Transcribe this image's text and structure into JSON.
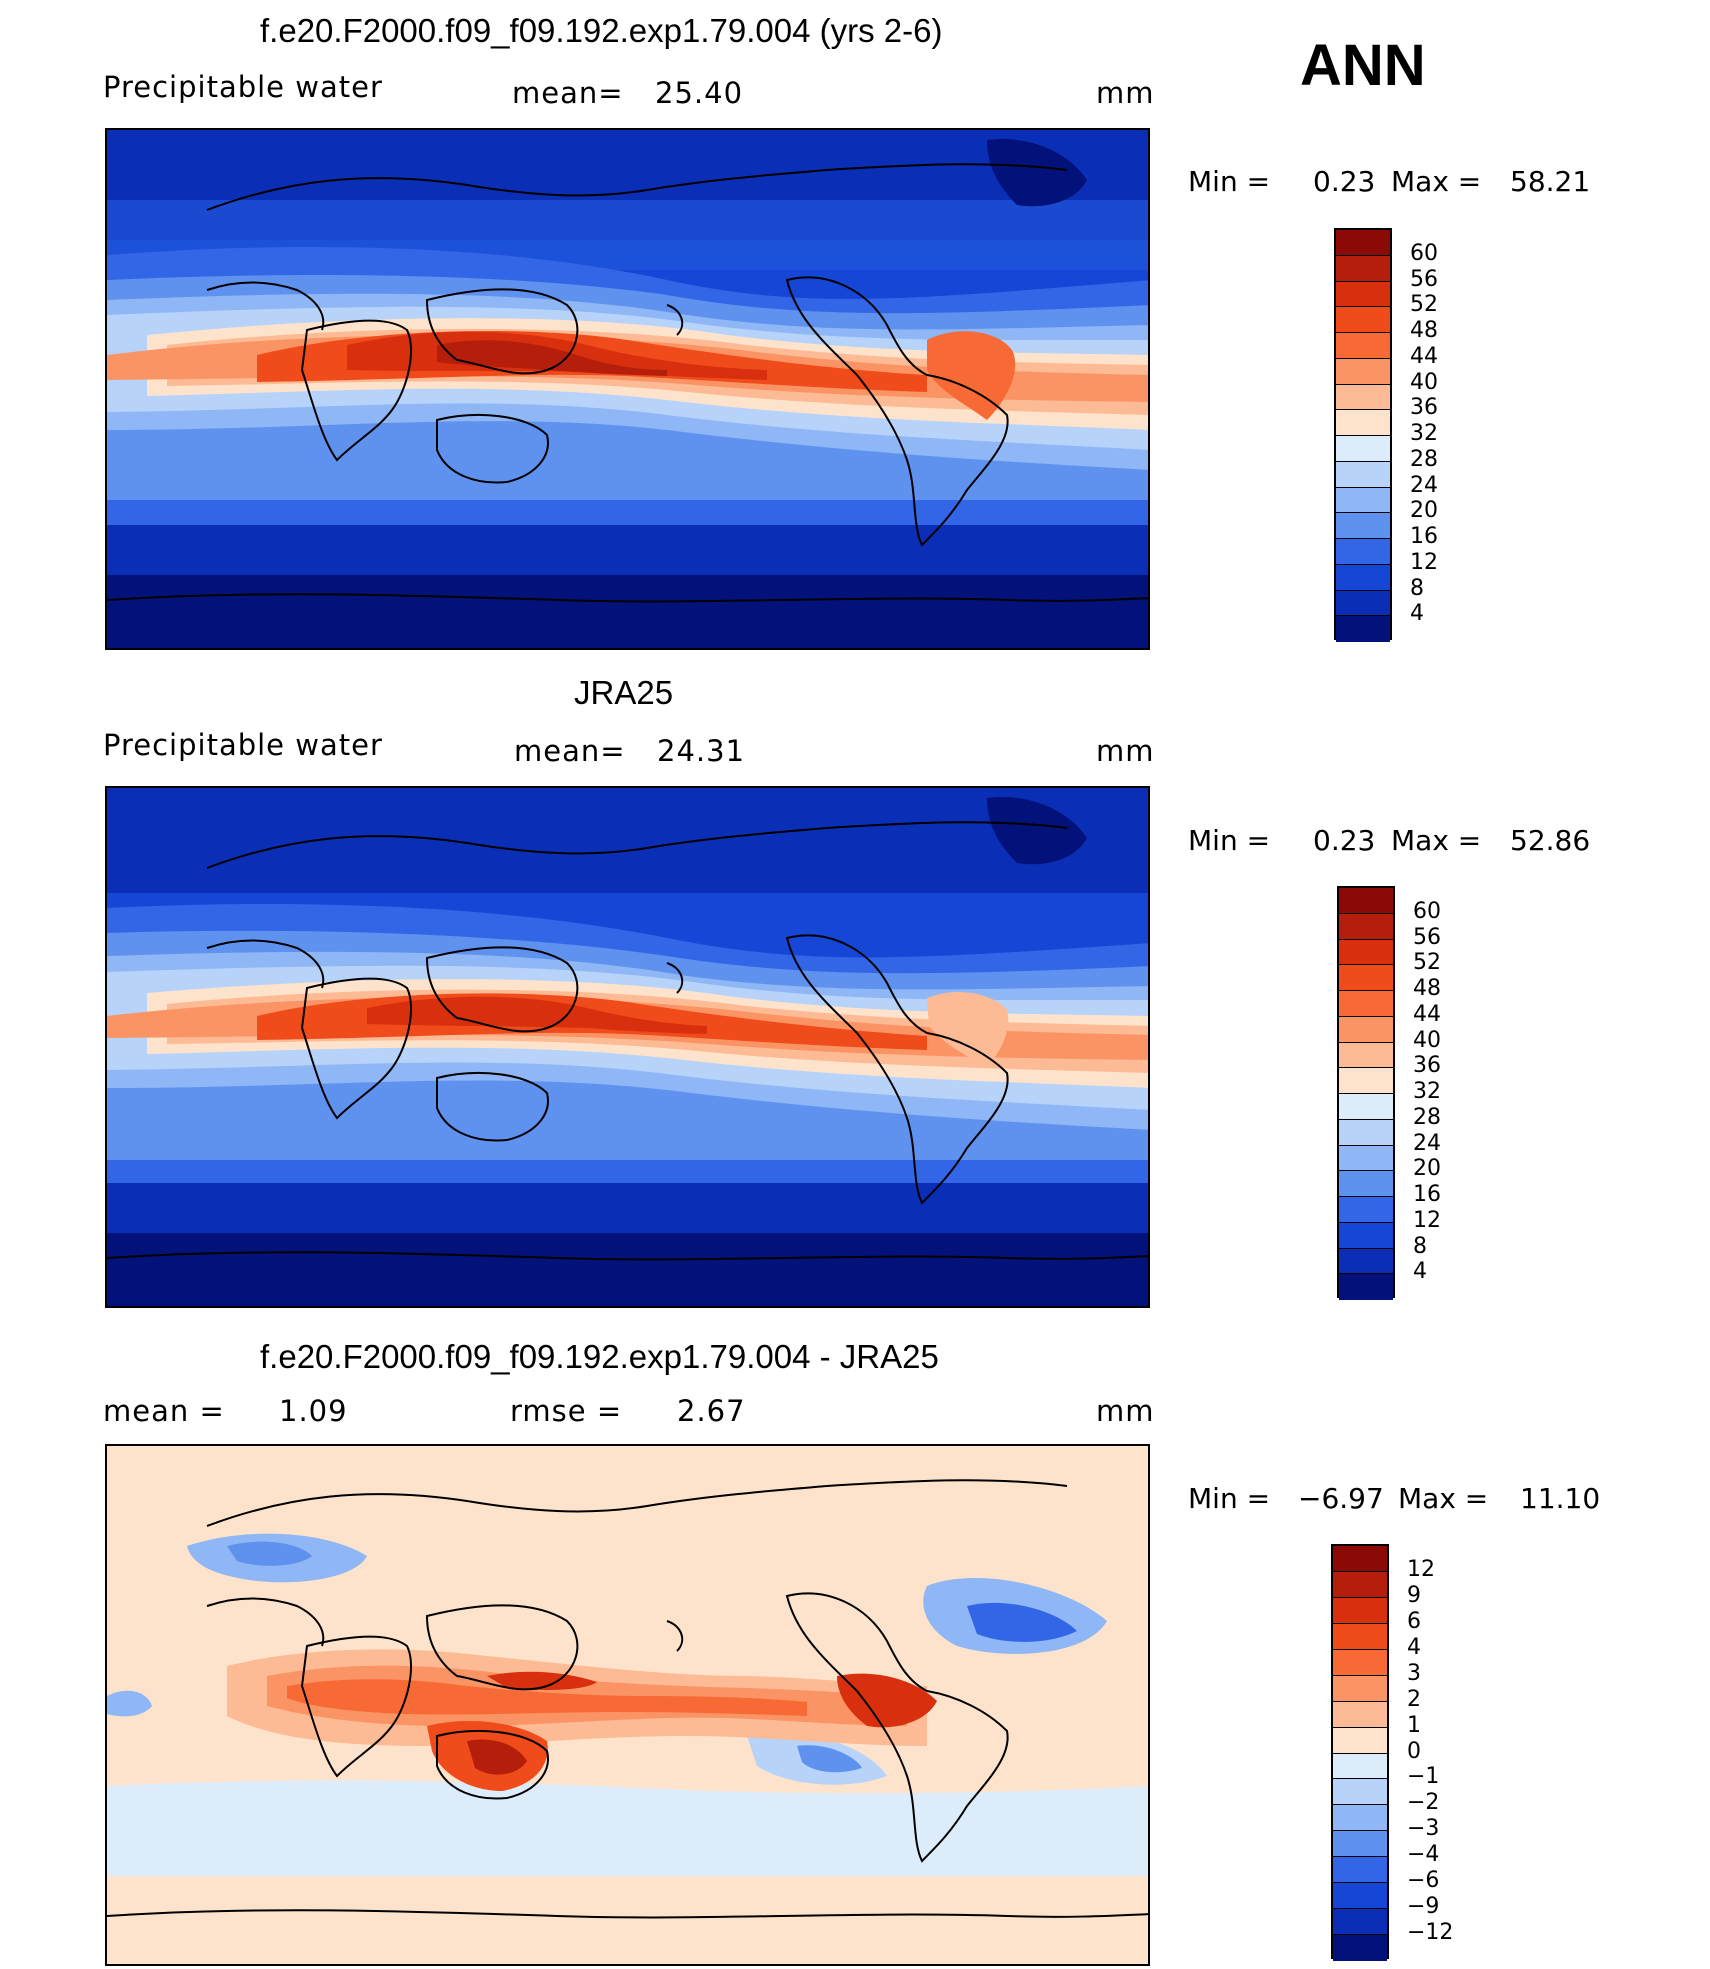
{
  "season": "ANN",
  "panels": [
    {
      "title": "f.e20.F2000.f09_f09.192.exp1.79.004 (yrs 2-6)",
      "left_label": "Precipitable  water",
      "center_label": "mean=",
      "center_value": "25.40",
      "unit": "mm",
      "min_label": "Min  =",
      "min_value": "0.23",
      "max_label": "Max  =",
      "max_value": "58.21",
      "colorbar": {
        "labels": [
          "60",
          "56",
          "52",
          "48",
          "44",
          "40",
          "36",
          "32",
          "28",
          "24",
          "20",
          "16",
          "12",
          "8",
          "4"
        ],
        "colors": [
          "#8b0a06",
          "#b51e0a",
          "#d8300e",
          "#f04b1a",
          "#f76a35",
          "#fb9464",
          "#fdbb95",
          "#fde3cc",
          "#dcecfb",
          "#b7d3fa",
          "#8fb6f5",
          "#5f91ee",
          "#3366e6",
          "#1546d6",
          "#0a2fb6",
          "#03127a"
        ]
      }
    },
    {
      "title": "JRA25",
      "left_label": "Precipitable  water",
      "center_label": "mean=",
      "center_value": "24.31",
      "unit": "mm",
      "min_label": "Min  =",
      "min_value": "0.23",
      "max_label": "Max  =",
      "max_value": "52.86",
      "colorbar": {
        "labels": [
          "60",
          "56",
          "52",
          "48",
          "44",
          "40",
          "36",
          "32",
          "28",
          "24",
          "20",
          "16",
          "12",
          "8",
          "4"
        ],
        "colors": [
          "#8b0a06",
          "#b51e0a",
          "#d8300e",
          "#f04b1a",
          "#f76a35",
          "#fb9464",
          "#fdbb95",
          "#fde3cc",
          "#dcecfb",
          "#b7d3fa",
          "#8fb6f5",
          "#5f91ee",
          "#3366e6",
          "#1546d6",
          "#0a2fb6",
          "#03127a"
        ]
      }
    },
    {
      "title": "f.e20.F2000.f09_f09.192.exp1.79.004 - JRA25",
      "left_label": "mean  =",
      "left_value": "1.09",
      "center_label": "rmse  =",
      "center_value": "2.67",
      "unit": "mm",
      "min_label": "Min  =",
      "min_value": "−6.97",
      "max_label": "Max  =",
      "max_value": "11.10",
      "colorbar": {
        "labels": [
          "12",
          "9",
          "6",
          "4",
          "3",
          "2",
          "1",
          "0",
          "−1",
          "−2",
          "−3",
          "−4",
          "−6",
          "−9",
          "−12"
        ],
        "colors": [
          "#8b0a06",
          "#b51e0a",
          "#d8300e",
          "#f04b1a",
          "#f76a35",
          "#fb9464",
          "#fdbb95",
          "#fde3cc",
          "#dcecfb",
          "#b7d3fa",
          "#8fb6f5",
          "#5f91ee",
          "#3366e6",
          "#1546d6",
          "#0a2fb6",
          "#03127a"
        ]
      }
    }
  ],
  "colors": {
    "deep_blue": "#03127a",
    "mid_blue": "#1546d6",
    "light_blue": "#8fb6f5",
    "pale": "#fde3cc",
    "orange": "#f04b1a",
    "dark_red": "#b51e0a",
    "coast": "#000000"
  }
}
